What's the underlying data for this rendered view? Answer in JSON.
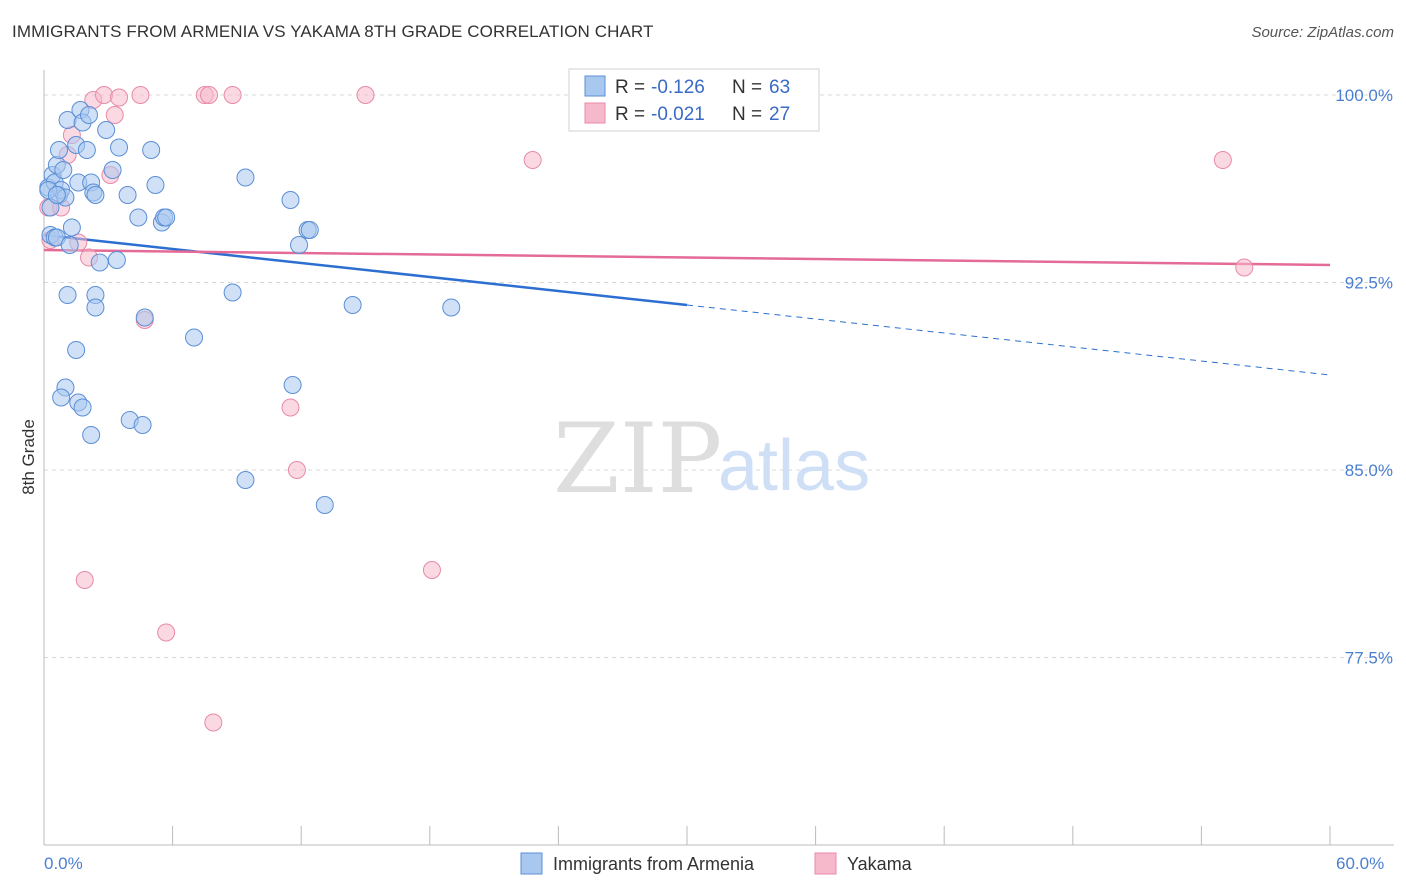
{
  "title": "IMMIGRANTS FROM ARMENIA VS YAKAMA 8TH GRADE CORRELATION CHART",
  "source": "Source: ZipAtlas.com",
  "watermark": {
    "zip": "ZIP",
    "atlas": "atlas"
  },
  "legend": {
    "r_label": "R =",
    "n_label": "N =",
    "rows": [
      {
        "r": "-0.126",
        "n": "63"
      },
      {
        "r": "-0.021",
        "n": "27"
      }
    ]
  },
  "colors": {
    "blue_fill": "#a9c8f0",
    "blue_stroke": "#5b8fd6",
    "blue_line": "#2c6fd1",
    "pink_fill": "#f6b9cc",
    "pink_stroke": "#e88aa8",
    "pink_line": "#e46a98",
    "grid": "#d8d8d8",
    "tick_label": "#4a7fd0"
  },
  "chart_data": {
    "type": "scatter",
    "title": "IMMIGRANTS FROM ARMENIA VS YAKAMA 8TH GRADE CORRELATION CHART",
    "xlabel": "",
    "ylabel": "8th Grade",
    "xlim": [
      0,
      60
    ],
    "ylim": [
      70.0,
      101.8
    ],
    "x_tick_labels": [
      "0.0%",
      "60.0%"
    ],
    "y_ticks": [
      100.0,
      92.5,
      85.0,
      77.5
    ],
    "y_tick_labels": [
      "100.0%",
      "92.5%",
      "85.0%",
      "77.5%"
    ],
    "grid": "horizontal dashed",
    "legend_position": "top-center",
    "series": [
      {
        "name": "Immigrants from Armenia",
        "color": "#a9c8f0",
        "r": -0.126,
        "n": 63,
        "trend": {
          "x0": 0.0,
          "y0": 94.4,
          "x1": 30.0,
          "y1": 91.6,
          "dashed_to_x": 60.0,
          "dashed_to_y": 88.8
        },
        "points": [
          [
            0.2,
            96.3
          ],
          [
            0.4,
            96.8
          ],
          [
            0.5,
            96.5
          ],
          [
            0.6,
            97.2
          ],
          [
            0.7,
            97.8
          ],
          [
            0.7,
            96.0
          ],
          [
            0.8,
            96.2
          ],
          [
            0.9,
            97.0
          ],
          [
            1.0,
            95.9
          ],
          [
            1.1,
            99.0
          ],
          [
            1.3,
            94.7
          ],
          [
            1.5,
            98.0
          ],
          [
            1.6,
            96.5
          ],
          [
            1.7,
            99.4
          ],
          [
            1.8,
            98.9
          ],
          [
            2.0,
            97.8
          ],
          [
            2.1,
            99.2
          ],
          [
            2.2,
            96.5
          ],
          [
            2.3,
            96.1
          ],
          [
            2.4,
            96.0
          ],
          [
            2.6,
            93.3
          ],
          [
            2.9,
            98.6
          ],
          [
            3.2,
            97.0
          ],
          [
            3.5,
            97.9
          ],
          [
            3.9,
            96.0
          ],
          [
            4.4,
            95.1
          ],
          [
            5.0,
            97.8
          ],
          [
            5.2,
            96.4
          ],
          [
            5.5,
            94.9
          ],
          [
            5.6,
            95.1
          ],
          [
            5.7,
            95.1
          ],
          [
            0.3,
            94.4
          ],
          [
            0.5,
            94.3
          ],
          [
            0.6,
            94.3
          ],
          [
            1.2,
            94.0
          ],
          [
            0.3,
            95.5
          ],
          [
            1.1,
            92.0
          ],
          [
            2.4,
            92.0
          ],
          [
            2.4,
            91.5
          ],
          [
            3.4,
            93.4
          ],
          [
            4.7,
            91.1
          ],
          [
            7.0,
            90.3
          ],
          [
            8.8,
            92.1
          ],
          [
            9.4,
            84.6
          ],
          [
            9.4,
            96.7
          ],
          [
            11.5,
            95.8
          ],
          [
            11.6,
            88.4
          ],
          [
            11.9,
            94.0
          ],
          [
            12.3,
            94.6
          ],
          [
            12.4,
            94.6
          ],
          [
            13.1,
            83.6
          ],
          [
            14.4,
            91.6
          ],
          [
            19.0,
            91.5
          ],
          [
            1.0,
            88.3
          ],
          [
            0.8,
            87.9
          ],
          [
            1.5,
            89.8
          ],
          [
            1.6,
            87.7
          ],
          [
            1.8,
            87.5
          ],
          [
            2.2,
            86.4
          ],
          [
            4.0,
            87.0
          ],
          [
            4.6,
            86.8
          ],
          [
            0.2,
            96.2
          ],
          [
            0.6,
            96.0
          ]
        ]
      },
      {
        "name": "Yakama",
        "color": "#f6b9cc",
        "r": -0.021,
        "n": 27,
        "trend": {
          "x0": 0.0,
          "y0": 93.8,
          "x1": 60.0,
          "y1": 93.2
        },
        "points": [
          [
            0.2,
            95.5
          ],
          [
            0.8,
            95.5
          ],
          [
            1.1,
            97.6
          ],
          [
            1.3,
            98.4
          ],
          [
            1.6,
            94.1
          ],
          [
            2.1,
            93.5
          ],
          [
            2.3,
            99.8
          ],
          [
            2.8,
            100.0
          ],
          [
            3.1,
            96.8
          ],
          [
            3.3,
            99.2
          ],
          [
            3.5,
            99.9
          ],
          [
            4.5,
            100.0
          ],
          [
            4.7,
            91.0
          ],
          [
            5.7,
            78.5
          ],
          [
            7.5,
            100.0
          ],
          [
            7.7,
            100.0
          ],
          [
            7.9,
            74.9
          ],
          [
            8.8,
            100.0
          ],
          [
            11.5,
            87.5
          ],
          [
            11.8,
            85.0
          ],
          [
            15.0,
            100.0
          ],
          [
            18.1,
            81.0
          ],
          [
            22.8,
            97.4
          ],
          [
            55.0,
            97.4
          ],
          [
            56.0,
            93.1
          ],
          [
            0.3,
            94.2
          ],
          [
            1.9,
            80.6
          ]
        ]
      }
    ]
  },
  "bottom_legend": [
    {
      "label": "Immigrants from Armenia"
    },
    {
      "label": "Yakama"
    }
  ]
}
